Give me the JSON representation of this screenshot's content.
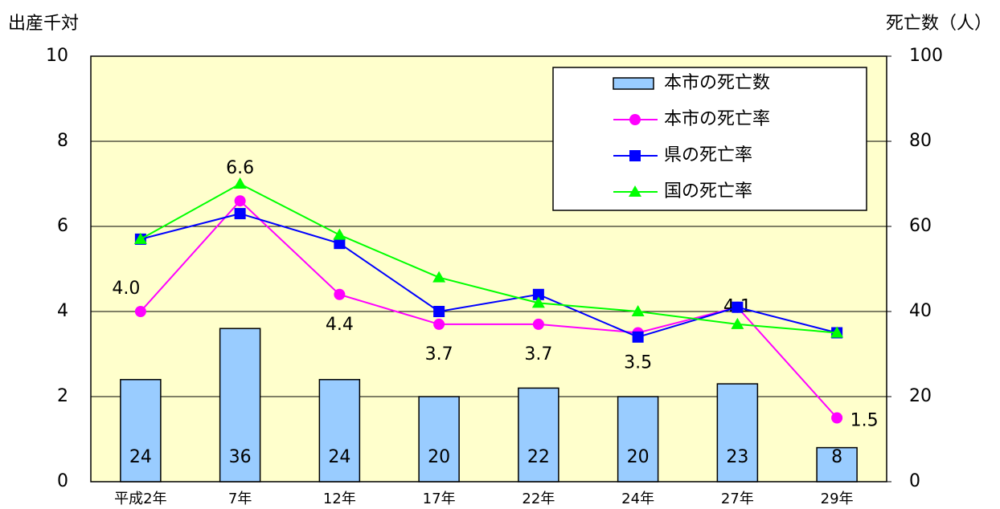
{
  "chart_data": {
    "type": "bar",
    "y_title": "出産千対",
    "y2_title": "死亡数（人）",
    "categories": [
      "平成2年",
      "7年",
      "12年",
      "17年",
      "22年",
      "24年",
      "27年",
      "29年"
    ],
    "ylim": [
      0,
      10
    ],
    "yticks": [
      0,
      2,
      4,
      6,
      8,
      10
    ],
    "y2lim": [
      0,
      100
    ],
    "y2ticks": [
      0,
      20,
      40,
      60,
      80,
      100
    ],
    "grid": true,
    "legend": "upper right",
    "series": [
      {
        "name": "本市の死亡数",
        "type": "bar",
        "axis": "y2",
        "color": "#99ccff",
        "values": [
          24,
          36,
          24,
          20,
          22,
          20,
          23,
          8
        ]
      },
      {
        "name": "本市の死亡率",
        "type": "line",
        "marker": "circle",
        "color": "#ff00ff",
        "values": [
          4.0,
          6.6,
          4.4,
          3.7,
          3.7,
          3.5,
          4.1,
          1.5
        ],
        "value_labels": [
          "4.0",
          "6.6",
          "4.4",
          "3.7",
          "3.7",
          "3.5",
          "4.1",
          "1.5"
        ]
      },
      {
        "name": "県の死亡率",
        "type": "line",
        "marker": "square",
        "color": "#0000ff",
        "values": [
          5.7,
          6.3,
          5.6,
          4.0,
          4.4,
          3.4,
          4.1,
          3.5
        ]
      },
      {
        "name": "国の死亡率",
        "type": "line",
        "marker": "triangle",
        "color": "#00ff00",
        "values": [
          5.7,
          7.0,
          5.8,
          4.8,
          4.2,
          4.0,
          3.7,
          3.5
        ]
      }
    ]
  }
}
